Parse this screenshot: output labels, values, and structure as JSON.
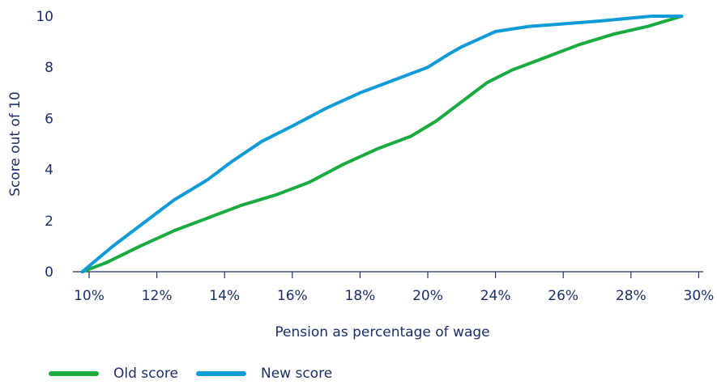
{
  "chart_data": {
    "type": "line",
    "xlabel": "Pension as percentage of wage",
    "ylabel": "Score out of 10",
    "x_ticks": [
      "10%",
      "12%",
      "14%",
      "16%",
      "18%",
      "20%",
      "24%",
      "26%",
      "28%",
      "30%"
    ],
    "y_ticks": [
      0,
      2,
      4,
      6,
      8,
      10
    ],
    "ylim": [
      0,
      10
    ],
    "grid": false,
    "legend_position": "bottom-left",
    "series": [
      {
        "name": "Old score",
        "color": "#1aab40",
        "points": [
          [
            9.8,
            0
          ],
          [
            10.5,
            0.35
          ],
          [
            11.5,
            1.0
          ],
          [
            12.5,
            1.6
          ],
          [
            13.5,
            2.1
          ],
          [
            14.5,
            2.6
          ],
          [
            15.5,
            3.0
          ],
          [
            16.5,
            3.5
          ],
          [
            17.5,
            4.2
          ],
          [
            18.5,
            4.8
          ],
          [
            19.5,
            5.3
          ],
          [
            20.5,
            5.9
          ],
          [
            21.5,
            6.4
          ],
          [
            22.5,
            6.9
          ],
          [
            23.5,
            7.4
          ],
          [
            24.5,
            7.9
          ],
          [
            25.5,
            8.4
          ],
          [
            26.5,
            8.9
          ],
          [
            27.5,
            9.3
          ],
          [
            28.5,
            9.6
          ],
          [
            29.5,
            10
          ]
        ]
      },
      {
        "name": "New score",
        "color": "#0e9bd8",
        "points": [
          [
            9.8,
            0
          ],
          [
            10.7,
            1.0
          ],
          [
            11.5,
            1.8
          ],
          [
            12.5,
            2.8
          ],
          [
            13.5,
            3.6
          ],
          [
            14.2,
            4.3
          ],
          [
            15.1,
            5.1
          ],
          [
            16.0,
            5.7
          ],
          [
            17.0,
            6.4
          ],
          [
            18.0,
            7.0
          ],
          [
            19.0,
            7.5
          ],
          [
            20.0,
            8.0
          ],
          [
            21.2,
            8.5
          ],
          [
            22.0,
            8.8
          ],
          [
            23.0,
            9.1
          ],
          [
            24.0,
            9.4
          ],
          [
            25.0,
            9.6
          ],
          [
            26.0,
            9.7
          ],
          [
            27.0,
            9.8
          ],
          [
            28.6,
            10.0
          ],
          [
            29.5,
            10.0
          ]
        ]
      }
    ]
  },
  "legend": {
    "old_label": "Old score",
    "new_label": "New score"
  }
}
